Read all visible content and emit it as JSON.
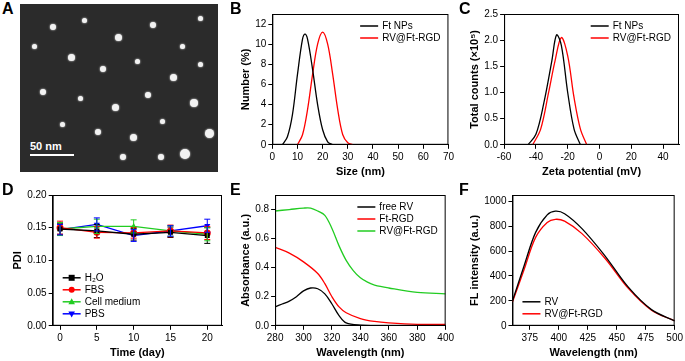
{
  "image_panel": {
    "title": "A",
    "scale_bar": "50 nm"
  },
  "chart_data": [
    {
      "type": "line",
      "title": "B",
      "x_label": "Size (nm)",
      "y_label": "Number (%)",
      "xlim": [
        0,
        70
      ],
      "xticks": [
        0,
        10,
        20,
        30,
        40,
        50,
        60,
        70
      ],
      "ylim": [
        0,
        13
      ],
      "yticks": [
        0,
        2,
        4,
        6,
        8,
        10,
        12
      ],
      "grid": false,
      "legend": "upper right",
      "series": [
        {
          "name": "Ft NPs",
          "color": "#000000",
          "x": [
            4,
            6,
            8,
            10,
            12,
            13,
            14,
            16,
            18,
            20,
            22,
            24
          ],
          "values": [
            0,
            0.8,
            3,
            7,
            10.5,
            11,
            10.5,
            7.5,
            4,
            1.5,
            0.3,
            0
          ]
        },
        {
          "name": "RV@Ft-RGD",
          "color": "#ff0000",
          "x": [
            10,
            12,
            14,
            16,
            18,
            20,
            22,
            24,
            26,
            28,
            30,
            32
          ],
          "values": [
            0,
            1,
            3.5,
            7,
            10,
            11.2,
            10,
            7,
            3.5,
            1,
            0.2,
            0
          ]
        }
      ]
    },
    {
      "type": "line",
      "title": "C",
      "x_label": "Zeta potential (mV)",
      "y_label": "Total counts (×10⁵)",
      "xlim": [
        -60,
        50
      ],
      "xticks": [
        -60,
        -40,
        -20,
        0,
        20,
        40
      ],
      "ylim": [
        0,
        2.5
      ],
      "yticks": [
        {
          "value": 0,
          "label": "0.0"
        },
        0.5,
        {
          "value": 1,
          "label": "1.0"
        },
        1.5,
        {
          "value": 2,
          "label": "2.0"
        },
        2.5
      ],
      "grid": false,
      "legend": "upper right",
      "series": [
        {
          "name": "Ft NPs",
          "color": "#000000",
          "x": [
            -45,
            -40,
            -35,
            -30,
            -27,
            -24,
            -20,
            -16,
            -12
          ],
          "values": [
            0,
            0.2,
            0.8,
            1.6,
            2.1,
            1.9,
            1.0,
            0.3,
            0
          ]
        },
        {
          "name": "RV@Ft-RGD",
          "color": "#ff0000",
          "x": [
            -42,
            -37,
            -32,
            -28,
            -24,
            -20,
            -16,
            -12,
            -8
          ],
          "values": [
            0,
            0.3,
            1.0,
            1.6,
            2.05,
            1.7,
            0.9,
            0.3,
            0
          ]
        }
      ]
    },
    {
      "type": "line",
      "title": "D",
      "x_label": "Time (day)",
      "y_label": "PDI",
      "xlim": [
        -1,
        22
      ],
      "xticks": [
        0,
        5,
        10,
        15,
        20
      ],
      "ylim": [
        0,
        0.2
      ],
      "yticks": [
        {
          "value": 0,
          "label": "0.00"
        },
        0.05,
        {
          "value": 0.1,
          "label": "0.10"
        },
        0.15,
        {
          "value": 0.2,
          "label": "0.20"
        }
      ],
      "grid": false,
      "legend": "lower left",
      "x": [
        0,
        5,
        10,
        15,
        20
      ],
      "series": [
        {
          "name": "H₂O",
          "color": "#000000",
          "marker": "square",
          "values": [
            0.148,
            0.145,
            0.14,
            0.143,
            0.138
          ],
          "errors": [
            0.008,
            0.01,
            0.009,
            0.008,
            0.012
          ]
        },
        {
          "name": "FBS",
          "color": "#ff0000",
          "marker": "circle",
          "values": [
            0.15,
            0.143,
            0.142,
            0.145,
            0.142
          ],
          "errors": [
            0.01,
            0.009,
            0.008,
            0.009,
            0.01
          ]
        },
        {
          "name": "Cell medium",
          "color": "#22cc22",
          "marker": "triangle",
          "values": [
            0.148,
            0.152,
            0.152,
            0.145,
            0.14
          ],
          "errors": [
            0.01,
            0.011,
            0.01,
            0.008,
            0.01
          ]
        },
        {
          "name": "PBS",
          "color": "#0000ff",
          "marker": "triangle_down",
          "values": [
            0.147,
            0.155,
            0.138,
            0.145,
            0.153
          ],
          "errors": [
            0.008,
            0.01,
            0.009,
            0.008,
            0.01
          ]
        }
      ]
    },
    {
      "type": "line",
      "title": "E",
      "x_label": "Wavelength (nm)",
      "y_label": "Absorbance (a.u.)",
      "xlim": [
        280,
        400
      ],
      "xticks": [
        280,
        300,
        320,
        340,
        360,
        380,
        400
      ],
      "ylim": [
        0,
        0.9
      ],
      "yticks": [
        {
          "value": 0,
          "label": "0.0"
        },
        0.2,
        0.4,
        0.6,
        0.8
      ],
      "grid": false,
      "legend": "upper right",
      "series": [
        {
          "name": "free RV",
          "color": "#000000",
          "x": [
            280,
            285,
            290,
            295,
            300,
            305,
            310,
            315,
            320,
            325,
            330,
            340,
            360,
            400
          ],
          "values": [
            0.13,
            0.15,
            0.17,
            0.2,
            0.24,
            0.26,
            0.255,
            0.22,
            0.15,
            0.07,
            0.02,
            0.005,
            0,
            0
          ]
        },
        {
          "name": "Ft-RGD",
          "color": "#ff0000",
          "x": [
            280,
            290,
            300,
            310,
            315,
            320,
            325,
            330,
            340,
            350,
            360,
            380,
            400
          ],
          "values": [
            0.54,
            0.5,
            0.44,
            0.36,
            0.29,
            0.2,
            0.13,
            0.09,
            0.05,
            0.03,
            0.02,
            0.01,
            0.01
          ]
        },
        {
          "name": "RV@Ft-RGD",
          "color": "#22cc22",
          "x": [
            280,
            290,
            300,
            305,
            310,
            315,
            320,
            325,
            330,
            335,
            340,
            345,
            350,
            360,
            380,
            400
          ],
          "values": [
            0.79,
            0.8,
            0.81,
            0.81,
            0.79,
            0.76,
            0.67,
            0.55,
            0.45,
            0.38,
            0.33,
            0.3,
            0.28,
            0.26,
            0.23,
            0.22
          ]
        }
      ]
    },
    {
      "type": "line",
      "title": "F",
      "x_label": "Wavelength (nm)",
      "y_label": "FL intensity (a.u.)",
      "xlim": [
        360,
        500
      ],
      "xticks": [
        375,
        400,
        425,
        450,
        475,
        500
      ],
      "ylim": [
        0,
        1050
      ],
      "yticks": [
        0,
        200,
        400,
        600,
        800,
        1000
      ],
      "grid": false,
      "legend": "lower left",
      "series": [
        {
          "name": "RV",
          "color": "#000000",
          "x": [
            360,
            370,
            380,
            390,
            397,
            405,
            420,
            440,
            460,
            480,
            500
          ],
          "values": [
            200,
            480,
            750,
            890,
            920,
            900,
            780,
            560,
            310,
            130,
            40
          ]
        },
        {
          "name": "RV@Ft-RGD",
          "color": "#ff0000",
          "x": [
            360,
            370,
            380,
            390,
            397,
            405,
            420,
            440,
            460,
            480,
            500
          ],
          "values": [
            190,
            450,
            710,
            830,
            855,
            840,
            740,
            540,
            300,
            125,
            40
          ]
        }
      ]
    }
  ]
}
